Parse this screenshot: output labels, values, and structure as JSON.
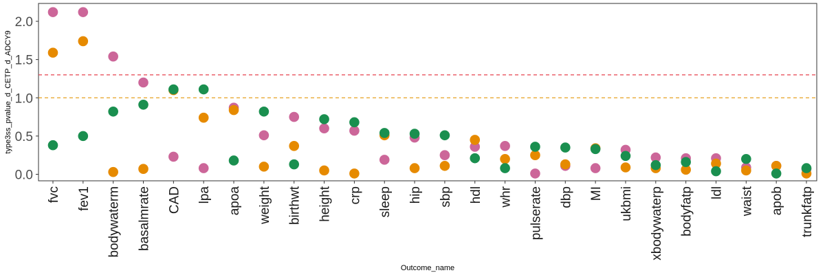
{
  "chart_data": {
    "type": "scatter",
    "title": "",
    "xlabel": "Outcome_name",
    "ylabel": "type3ss_pvalue_d_CETP_d_ADCY9",
    "ylim": [
      -0.08,
      2.22
    ],
    "yticks": [
      "0.0",
      "0.5",
      "1.0",
      "1.5",
      "2.0"
    ],
    "ytick_values": [
      0,
      0.5,
      1.0,
      1.5,
      2.0
    ],
    "grid": false,
    "legend": "none",
    "categories": [
      "fvc",
      "fev1",
      "bodywaterm",
      "basalmrate",
      "CAD",
      "lpa",
      "apoa",
      "weight",
      "birthwt",
      "height",
      "crp",
      "sleep",
      "hip",
      "sbp",
      "hdl",
      "whr",
      "pulserate",
      "dbp",
      "MI",
      "ukbmi",
      "xbodywaterp",
      "bodyfatp",
      "ldl",
      "waist",
      "apob",
      "trunkfatp"
    ],
    "series": [
      {
        "color": "#CC6699",
        "values": [
          2.12,
          2.12,
          1.54,
          1.2,
          0.23,
          0.08,
          0.87,
          0.51,
          0.75,
          0.6,
          0.57,
          0.19,
          0.48,
          0.25,
          0.36,
          0.37,
          0.01,
          0.11,
          0.08,
          0.32,
          0.22,
          0.21,
          0.21,
          0.09,
          0.11,
          0.07
        ]
      },
      {
        "color": "#E68A00",
        "values": [
          1.59,
          1.74,
          0.03,
          0.07,
          1.1,
          0.74,
          0.84,
          0.1,
          0.37,
          0.05,
          0.01,
          0.51,
          0.08,
          0.11,
          0.45,
          0.2,
          0.25,
          0.13,
          0.34,
          0.09,
          0.08,
          0.06,
          0.14,
          0.05,
          0.11,
          0.01
        ]
      },
      {
        "color": "#1A8F4F",
        "values": [
          0.38,
          0.5,
          0.82,
          0.91,
          1.11,
          1.11,
          0.18,
          0.82,
          0.13,
          0.72,
          0.68,
          0.54,
          0.53,
          0.51,
          0.21,
          0.08,
          0.36,
          0.35,
          0.33,
          0.24,
          0.12,
          0.16,
          0.04,
          0.2,
          0.01,
          0.08
        ]
      }
    ],
    "hlines": [
      {
        "y": 1.3,
        "color": "#E5414D"
      },
      {
        "y": 1.0,
        "color": "#E6A120"
      }
    ]
  }
}
